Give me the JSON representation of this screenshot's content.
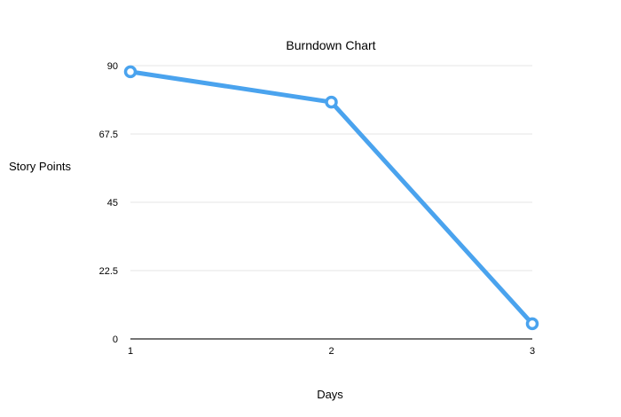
{
  "chart_data": {
    "type": "line",
    "title": "Burndown Chart",
    "xlabel": "Days",
    "ylabel": "Story Points",
    "x": [
      1,
      2,
      3
    ],
    "y_ticks": [
      "0",
      "22.5",
      "45",
      "67.5",
      "90"
    ],
    "ylim": [
      0,
      90
    ],
    "series": [
      {
        "values": [
          88,
          78,
          5
        ],
        "color": "#4aa3ee"
      }
    ],
    "grid": true,
    "legend": "none"
  }
}
